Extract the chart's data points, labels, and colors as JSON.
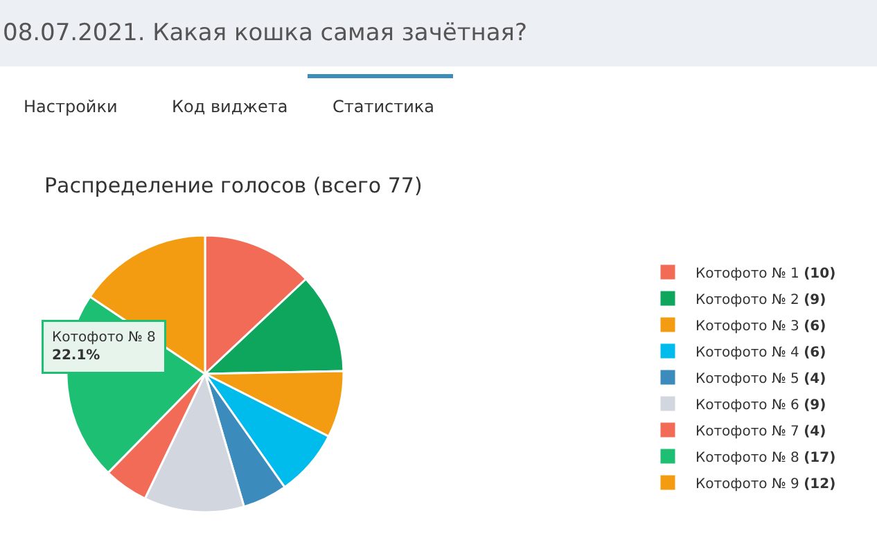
{
  "chart_data": {
    "type": "pie",
    "title": "08.07.2021. Какая кошка самая зачётная?",
    "subtitle": "Распределение голосов (всего 77)",
    "annotations": [
      "Настройки",
      "Код виджета",
      "Статистика",
      "Котофото № 8\n22.1%"
    ],
    "categories": [
      "Котофото № 1",
      "Котофото № 2",
      "Котофото № 3",
      "Котофото № 4",
      "Котофото № 5",
      "Котофото № 6",
      "Котофото № 7",
      "Котофото № 8",
      "Котофото № 9"
    ],
    "values": [
      10,
      9,
      6,
      6,
      4,
      9,
      4,
      17,
      12
    ],
    "value_labels": [
      "(10)",
      "(9)",
      "(6)",
      "(6)",
      "(4)",
      "(9)",
      "(4)",
      "(17)",
      "(12)"
    ],
    "colors": [
      "#f26b57",
      "#0da65c",
      "#f39c12",
      "#00bcec",
      "#3b8bbd",
      "#d2d6de",
      "#f26b57",
      "#1dbf73",
      "#f39c12"
    ],
    "legend": "right"
  }
}
